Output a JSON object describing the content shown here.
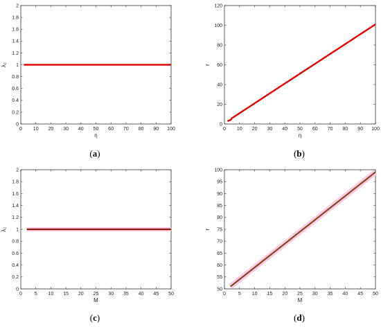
{
  "chart_data": [
    {
      "panel": "(a)",
      "panel_parts": [
        "(",
        "a",
        ")"
      ],
      "type": "line",
      "xlabel": "η",
      "ylabel": "λ₂",
      "xlim": [
        0,
        100
      ],
      "ylim": [
        0,
        2
      ],
      "xticks": [
        0,
        10,
        20,
        30,
        40,
        50,
        60,
        70,
        80,
        90,
        100
      ],
      "yticks": [
        0,
        0.2,
        0.4,
        0.6,
        0.8,
        1,
        1.2,
        1.4,
        1.6,
        1.8,
        2
      ],
      "series": [
        {
          "color": "#e00000",
          "x": [
            2,
            100
          ],
          "y": [
            1,
            1
          ]
        }
      ]
    },
    {
      "panel": "(b)",
      "panel_parts": [
        "(",
        "b",
        ")"
      ],
      "type": "line",
      "xlabel": "η",
      "ylabel": "r",
      "xlim": [
        0,
        100
      ],
      "ylim": [
        0,
        120
      ],
      "xticks": [
        0,
        10,
        20,
        30,
        40,
        50,
        60,
        70,
        80,
        90,
        100
      ],
      "yticks": [
        0,
        20,
        40,
        60,
        80,
        100,
        120
      ],
      "series": [
        {
          "color": "#e00000",
          "x": [
            2,
            4,
            5,
            100
          ],
          "y": [
            3,
            4,
            6,
            101
          ]
        }
      ]
    },
    {
      "panel": "(c)",
      "panel_parts": [
        "(",
        "c",
        ")"
      ],
      "type": "line",
      "xlabel": "M",
      "ylabel": "λ₂",
      "xlim": [
        0,
        50
      ],
      "ylim": [
        0,
        2
      ],
      "xticks": [
        0,
        5,
        10,
        15,
        20,
        25,
        30,
        35,
        40,
        45,
        50
      ],
      "yticks": [
        0,
        0.2,
        0.4,
        0.6,
        0.8,
        1,
        1.2,
        1.4,
        1.6,
        1.8,
        2
      ],
      "series": [
        {
          "color": "#ffc8e6",
          "x": [
            2,
            50
          ],
          "y": [
            1,
            1
          ],
          "width": 6
        },
        {
          "color": "#8c1c10",
          "x": [
            2,
            50
          ],
          "y": [
            1,
            1
          ],
          "width": 2.2
        }
      ]
    },
    {
      "panel": "(d)",
      "panel_parts": [
        "(",
        "d",
        ")"
      ],
      "type": "line",
      "xlabel": "M",
      "ylabel": "r",
      "xlim": [
        0,
        50
      ],
      "ylim": [
        50,
        100
      ],
      "xticks": [
        0,
        5,
        10,
        15,
        20,
        25,
        30,
        35,
        40,
        45,
        50
      ],
      "yticks": [
        50,
        55,
        60,
        65,
        70,
        75,
        80,
        85,
        90,
        95,
        100
      ],
      "series": [
        {
          "color": "#ffc8e6",
          "x": [
            2,
            50
          ],
          "y": [
            51,
            99
          ],
          "width": 8
        },
        {
          "color": "#7a4a1c",
          "x": [
            2,
            50
          ],
          "y": [
            51,
            99
          ],
          "width": 2.2
        }
      ]
    }
  ]
}
